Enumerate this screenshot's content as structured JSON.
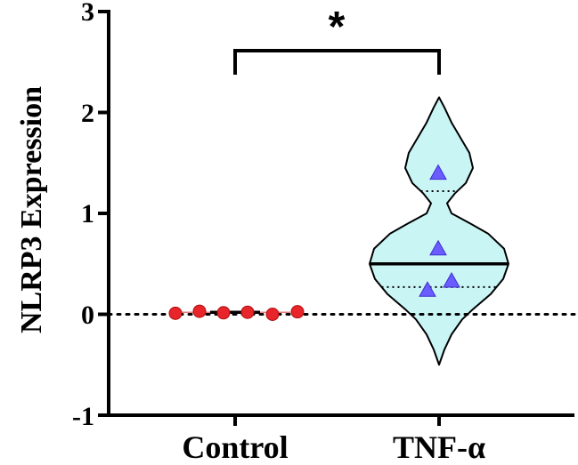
{
  "chart_data": {
    "type": "violin",
    "ylabel": "NLRP3  Expression",
    "ylim": [
      -1,
      3
    ],
    "yticks": [
      "3",
      "2",
      "1",
      "0",
      "-1"
    ],
    "ytick_values": [
      3,
      2,
      1,
      0,
      -1
    ],
    "baseline": 0,
    "categories": [
      "Control",
      "TNF-α"
    ],
    "groups": [
      {
        "category": "Control",
        "points": [
          0.01,
          0.03,
          0.015,
          0.02,
          0.0,
          0.025
        ],
        "median": 0.02,
        "violin_range": [
          0.0,
          0.04
        ],
        "point_color": "#e8252a",
        "fill_color": "#ff9999",
        "marker": "circle"
      },
      {
        "category": "TNF-α",
        "points": [
          1.4,
          0.65,
          0.33,
          0.24
        ],
        "median": 0.5,
        "quartiles": [
          0.27,
          1.22
        ],
        "violin_range": [
          -0.5,
          2.15
        ],
        "point_color": "#6a5cff",
        "fill_color": "#c9f5f5",
        "marker": "triangle"
      }
    ],
    "significance": {
      "label": "*",
      "between": [
        "Control",
        "TNF-α"
      ]
    }
  }
}
